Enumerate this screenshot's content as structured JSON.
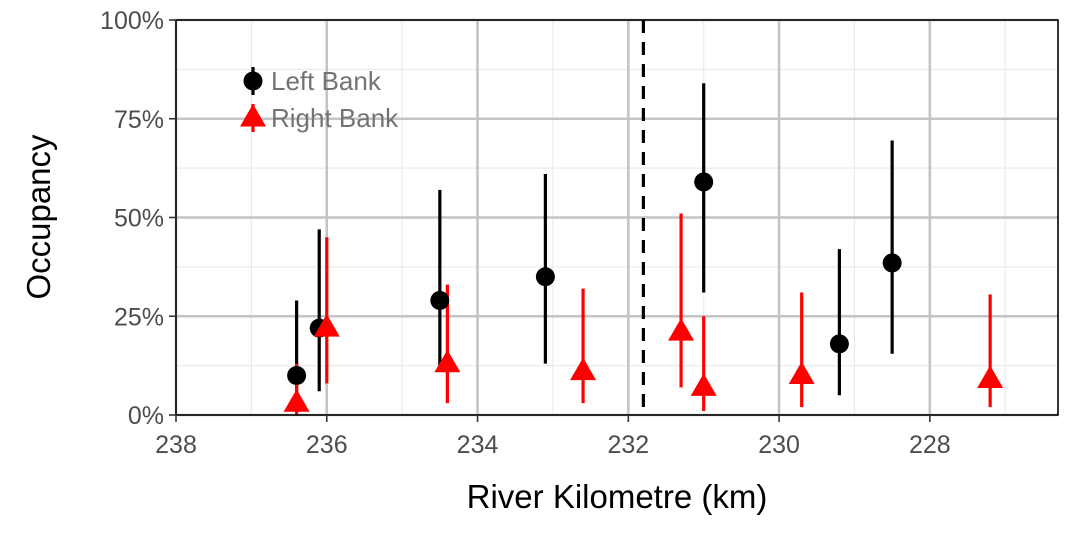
{
  "chart_data": {
    "type": "scatter",
    "xlabel": "River Kilometre (km)",
    "ylabel": "Occupancy",
    "x_reversed": true,
    "xlim": [
      238,
      226.3
    ],
    "ylim": [
      0,
      1
    ],
    "x_ticks": [
      {
        "value": 238,
        "label": "238"
      },
      {
        "value": 236,
        "label": "236"
      },
      {
        "value": 234,
        "label": "234"
      },
      {
        "value": 232,
        "label": "232"
      },
      {
        "value": 230,
        "label": "230"
      },
      {
        "value": 228,
        "label": "228"
      }
    ],
    "y_ticks": [
      {
        "value": 0,
        "label": "0%"
      },
      {
        "value": 0.25,
        "label": "25%"
      },
      {
        "value": 0.5,
        "label": "50%"
      },
      {
        "value": 0.75,
        "label": "75%"
      },
      {
        "value": 1,
        "label": "100%"
      }
    ],
    "grid": true,
    "legend_position": "top-left",
    "reference_line": {
      "x": 231.8,
      "style": "dashed",
      "color": "#000000"
    },
    "series": [
      {
        "name": "Left Bank",
        "marker": "circle",
        "color": "#000000",
        "points": [
          {
            "x": 236.4,
            "y": 0.1,
            "lo": 0.02,
            "hi": 0.29
          },
          {
            "x": 236.1,
            "y": 0.22,
            "lo": 0.06,
            "hi": 0.47
          },
          {
            "x": 234.5,
            "y": 0.29,
            "lo": 0.12,
            "hi": 0.57
          },
          {
            "x": 233.1,
            "y": 0.35,
            "lo": 0.13,
            "hi": 0.61
          },
          {
            "x": 231.0,
            "y": 0.59,
            "lo": 0.31,
            "hi": 0.84
          },
          {
            "x": 229.2,
            "y": 0.18,
            "lo": 0.05,
            "hi": 0.42
          },
          {
            "x": 228.5,
            "y": 0.385,
            "lo": 0.155,
            "hi": 0.695
          }
        ]
      },
      {
        "name": "Right Bank",
        "marker": "triangle",
        "color": "#ff0000",
        "points": [
          {
            "x": 236.4,
            "y": 0.03,
            "lo": 0.0,
            "hi": 0.13
          },
          {
            "x": 236.0,
            "y": 0.22,
            "lo": 0.08,
            "hi": 0.45
          },
          {
            "x": 234.4,
            "y": 0.13,
            "lo": 0.03,
            "hi": 0.33
          },
          {
            "x": 232.6,
            "y": 0.11,
            "lo": 0.03,
            "hi": 0.32
          },
          {
            "x": 231.3,
            "y": 0.21,
            "lo": 0.07,
            "hi": 0.51
          },
          {
            "x": 231.0,
            "y": 0.07,
            "lo": 0.01,
            "hi": 0.25
          },
          {
            "x": 229.7,
            "y": 0.1,
            "lo": 0.02,
            "hi": 0.31
          },
          {
            "x": 227.2,
            "y": 0.09,
            "lo": 0.02,
            "hi": 0.305
          }
        ]
      }
    ]
  }
}
